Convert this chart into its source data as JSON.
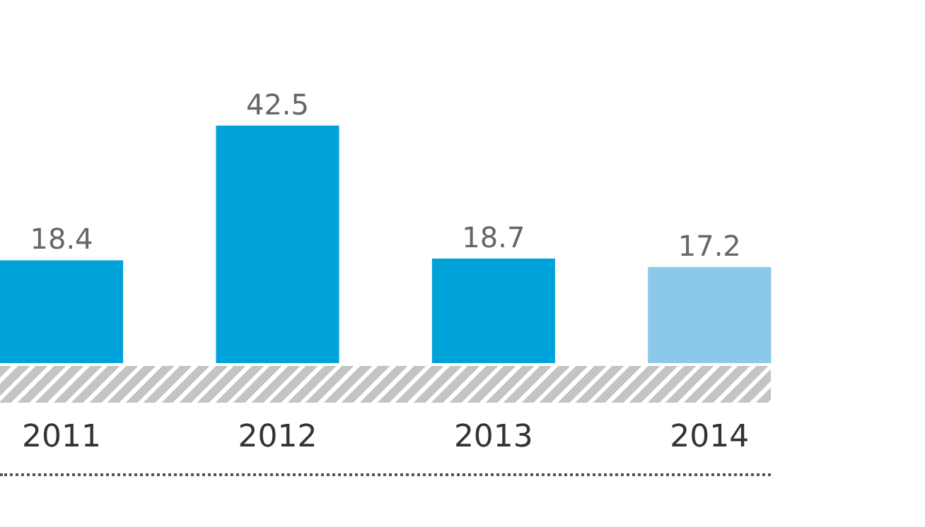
{
  "chart_data": {
    "type": "bar",
    "categories": [
      "2011",
      "2012",
      "2013",
      "2014"
    ],
    "values": [
      18.4,
      42.5,
      18.7,
      17.2
    ],
    "colors": [
      "#00a3d9",
      "#00a3d9",
      "#00a3d9",
      "#8cc8e8"
    ],
    "data_labels": true,
    "grid": false,
    "legend": false
  }
}
